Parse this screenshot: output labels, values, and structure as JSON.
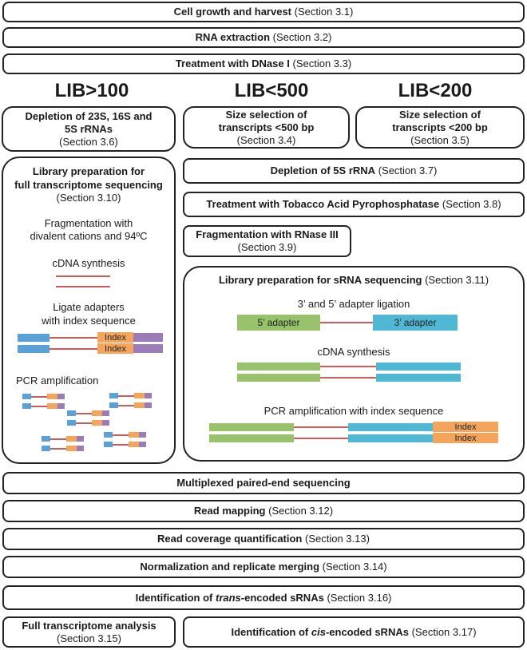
{
  "steps": {
    "growth": {
      "bold": "Cell growth and harvest",
      "sec": "(Section 3.1)"
    },
    "rna": {
      "bold": "RNA extraction",
      "sec": "(Section 3.2)"
    },
    "dnase": {
      "bold": "Treatment with DNase I",
      "sec": "(Section 3.3)"
    },
    "depl23": {
      "bold1": "Depletion of 23S, 16S and",
      "bold2": "5S rRNAs",
      "sec": "(Section 3.6)"
    },
    "size500": {
      "bold1": "Size selection of",
      "bold2": "transcripts <500 bp",
      "sec": "(Section 3.4)"
    },
    "size200": {
      "bold1": "Size selection of",
      "bold2": "transcripts <200 bp",
      "sec": "(Section 3.5)"
    },
    "depl5s": {
      "bold": "Depletion of 5S rRNA",
      "sec": "(Section 3.7)"
    },
    "tap": {
      "bold": "Treatment with Tobacco Acid Pyrophosphatase",
      "sec": "(Section 3.8)"
    },
    "rnase3": {
      "bold": "Fragmentation with RNase III",
      "sec": "(Section 3.9)"
    },
    "multiplex": {
      "bold": "Multiplexed paired-end sequencing"
    },
    "mapping": {
      "bold": "Read mapping",
      "sec": "(Section 3.12)"
    },
    "coverage": {
      "bold": "Read coverage quantification",
      "sec": "(Section 3.13)"
    },
    "norm": {
      "bold": "Normalization and replicate merging",
      "sec": "(Section 3.14)"
    },
    "trans": {
      "bold_pre": "Identification of ",
      "italic": "trans",
      "bold_post": "-encoded sRNAs",
      "sec": "(Section 3.16)"
    },
    "fulltx": {
      "bold": "Full transcriptome analysis",
      "sec": "(Section 3.15)"
    },
    "cis": {
      "bold_pre": "Identification of ",
      "italic": "cis",
      "bold_post": "-encoded sRNAs",
      "sec": "(Section 3.17)"
    }
  },
  "libs": {
    "lib100": "LIB>100",
    "lib500": "LIB<500",
    "lib200": "LIB<200"
  },
  "libprep_full": {
    "title1": "Library preparation for",
    "title2": "full transcriptome sequencing",
    "sec": "(Section 3.10)",
    "frag1": "Fragmentation with",
    "frag2": "divalent cations and 94ºC",
    "cdna": "cDNA synthesis",
    "ligate1": "Ligate adapters",
    "ligate2": "with index sequence",
    "index": "Index",
    "pcr": "PCR amplification"
  },
  "libprep_srna": {
    "title": "Library preparation for sRNA sequencing",
    "sec": "(Section 3.11)",
    "ligation": "3’ and 5’ adapter ligation",
    "adapter5": "5’ adapter",
    "adapter3": "3’ adapter",
    "cdna": "cDNA synthesis",
    "pcr": "PCR amplification with index sequence",
    "index": "Index"
  },
  "colors": {
    "blue": "#5aa2d6",
    "orange": "#f5a55b",
    "purple": "#9b7bb8",
    "green": "#98c36a",
    "cyan": "#50b8d4",
    "line": "#cc5b5b"
  }
}
